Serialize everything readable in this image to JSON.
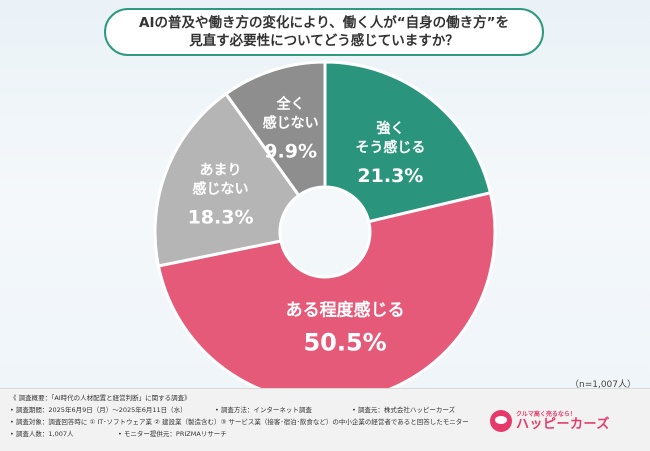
{
  "question": {
    "line1": "AIの普及や働き方の変化により、働く人が“自身の働き方”を",
    "line2": "見直す必要性についてどう感じていますか？"
  },
  "chart_data": {
    "type": "pie",
    "donut": true,
    "categories": [
      "強くそう感じる",
      "ある程度感じる",
      "あまり感じない",
      "全く感じない"
    ],
    "label_lines": [
      [
        "強く",
        "そう感じる"
      ],
      [
        "ある程度感じる"
      ],
      [
        "あまり",
        "感じない"
      ],
      [
        "全く",
        "感じない"
      ]
    ],
    "values": [
      21.3,
      50.5,
      18.3,
      9.9
    ],
    "value_labels": [
      "21.3%",
      "50.5%",
      "18.3%",
      "9.9%"
    ],
    "colors": [
      "#2a957c",
      "#e65a79",
      "#b5b5b5",
      "#8e8e8e"
    ],
    "start": "12 o'clock, clockwise"
  },
  "sample_size": "（n=1,007人）",
  "footer": {
    "l1": "《 調査概要：「AI時代の人材配置と経営判断」に関する調査》",
    "l2a": "• 調査期間：2025年6月9日（月）～2025年6月11日（水）",
    "l2b": "• 調査方法：インターネット調査",
    "l2c": "• 調査元：株式会社ハッピーカーズ",
    "l3": "• 調査対象：調査回答時に ① IT･ソフトウェア業 ② 建設業（製造含む）③ サービス業（接客･宿泊･飲食など）の中小企業の経営者であると回答したモニター",
    "l4a": "• 調査人数：1,007人",
    "l4b": "• モニター提供元：PRIZMAリサーチ"
  },
  "brand": {
    "tagline": "クルマ高く売るなら！",
    "name": "ハッピーカーズ"
  }
}
